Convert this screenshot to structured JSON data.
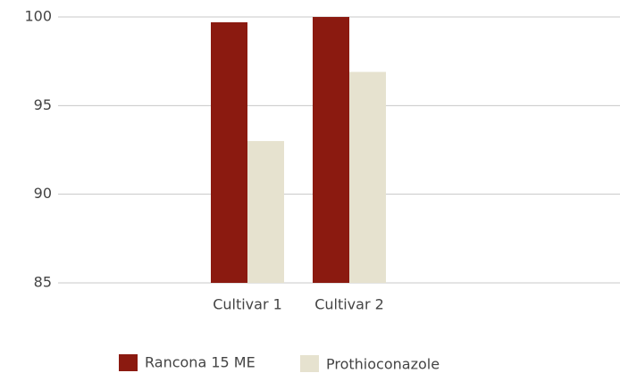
{
  "chart_data": {
    "type": "bar",
    "categories": [
      "Cultivar 1",
      "Cultivar 2"
    ],
    "series": [
      {
        "name": "Rancona 15 ME",
        "color": "#8b1a10",
        "values": [
          99.7,
          100
        ]
      },
      {
        "name": "Prothioconazole",
        "color": "#e6e2cf",
        "values": [
          93,
          96.9
        ]
      }
    ],
    "ylim": [
      85,
      100
    ],
    "yticks": [
      85,
      90,
      95,
      100
    ],
    "grid": true,
    "legend": "bottom"
  }
}
